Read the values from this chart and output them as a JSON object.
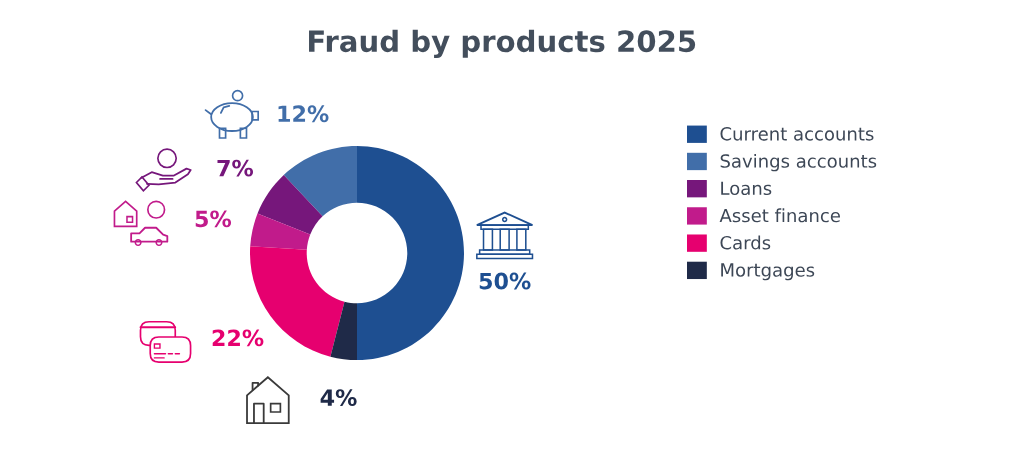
{
  "chart_data": {
    "type": "donut",
    "title": "Fraud by products 2025",
    "categories": [
      "Current accounts",
      "Savings accounts",
      "Loans",
      "Asset finance",
      "Cards",
      "Mortgages"
    ],
    "values": [
      50,
      12,
      7,
      5,
      22,
      4
    ],
    "colors": [
      "#1e4f91",
      "#416ea9",
      "#76177b",
      "#c11b8b",
      "#e6006f",
      "#1f2a48"
    ],
    "value_labels": [
      "50%",
      "12%",
      "7%",
      "5%",
      "22%",
      "4%"
    ],
    "legend": "right"
  }
}
